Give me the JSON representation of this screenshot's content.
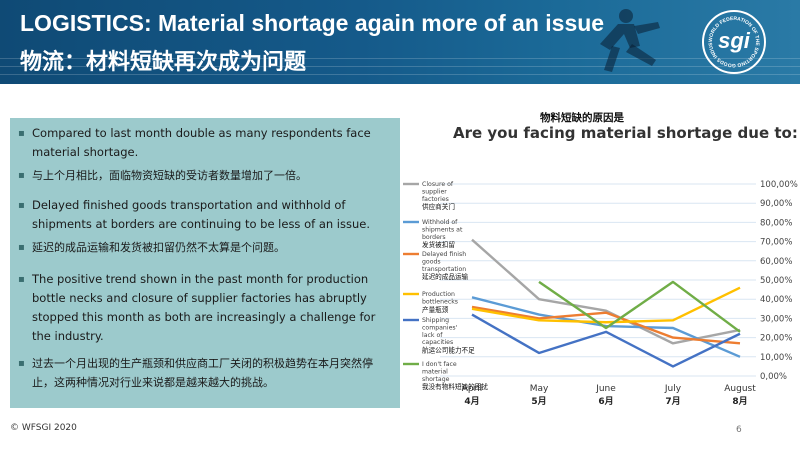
{
  "header": {
    "title": "LOGISTICS: Material shortage again more of an issue",
    "subtitle": "物流：材料短缺再次成为问题",
    "logo_text": "sgi",
    "logo_ring_text": "WORLD FEDERATION OF THE SPORTING GOODS INDUSTRY"
  },
  "bullets": [
    {
      "text": "Compared to last month double as many respondents face material shortage."
    },
    {
      "text": "与上个月相比，面临物资短缺的受访者数量增加了一倍。"
    },
    {
      "text": "Delayed finished goods transportation and withhold of shipments at borders are continuing to be less of an issue."
    },
    {
      "text": "延迟的成品运输和发货被扣留仍然不太算是个问题。"
    },
    {
      "text": "The positive trend shown in the past month for production bottle necks and closure of supplier factories has abruptly stopped this month as both are increasingly a challenge for the industry."
    },
    {
      "text": "过去一个月出现的生产瓶颈和供应商工厂关闭的积极趋势在本月突然停止，这两种情况对行业来说都是越来越大的挑战。"
    }
  ],
  "chart_data": {
    "type": "line",
    "title_cn": "物料短缺的原因是",
    "title": "Are you facing material shortage due to:",
    "categories": [
      "April",
      "May",
      "June",
      "July",
      "August"
    ],
    "categories_cn": [
      "4月",
      "5月",
      "6月",
      "7月",
      "8月"
    ],
    "ylim": [
      0,
      100
    ],
    "yticks": [
      "0,00%",
      "10,00%",
      "20,00%",
      "30,00%",
      "40,00%",
      "50,00%",
      "60,00%",
      "70,00%",
      "80,00%",
      "90,00%",
      "100,00%"
    ],
    "grid": true,
    "legend_position": "left-inside",
    "series": [
      {
        "name": "Closure of supplier factories",
        "name_cn": "供应商关门",
        "color": "#a6a6a6",
        "values": [
          71,
          40,
          34,
          17,
          24
        ]
      },
      {
        "name": "Withhold of shipments at borders",
        "name_cn": "发货被扣留",
        "color": "#5b9bd5",
        "values": [
          41,
          32,
          26,
          25,
          10
        ]
      },
      {
        "name": "Delayed finish goods transportation",
        "name_cn": "延迟的成品运输",
        "color": "#ed7d31",
        "values": [
          36,
          30,
          33,
          20,
          17
        ]
      },
      {
        "name": "Production bottlenecks",
        "name_cn": "产量瓶颈",
        "color": "#ffc000",
        "values": [
          35,
          29,
          28,
          29,
          46
        ]
      },
      {
        "name": "Shipping companies' lack of capacities",
        "name_cn": "航运公司能力不足",
        "color": "#4472c4",
        "values": [
          32,
          12,
          23,
          5,
          22
        ]
      },
      {
        "name": "I don't face material shortage",
        "name_cn": "我没有物料短缺的困扰",
        "color": "#70ad47",
        "values": [
          null,
          49,
          25,
          49,
          23
        ]
      }
    ]
  },
  "footer": {
    "copyright": "© WFSGI 2020",
    "page": "6"
  }
}
